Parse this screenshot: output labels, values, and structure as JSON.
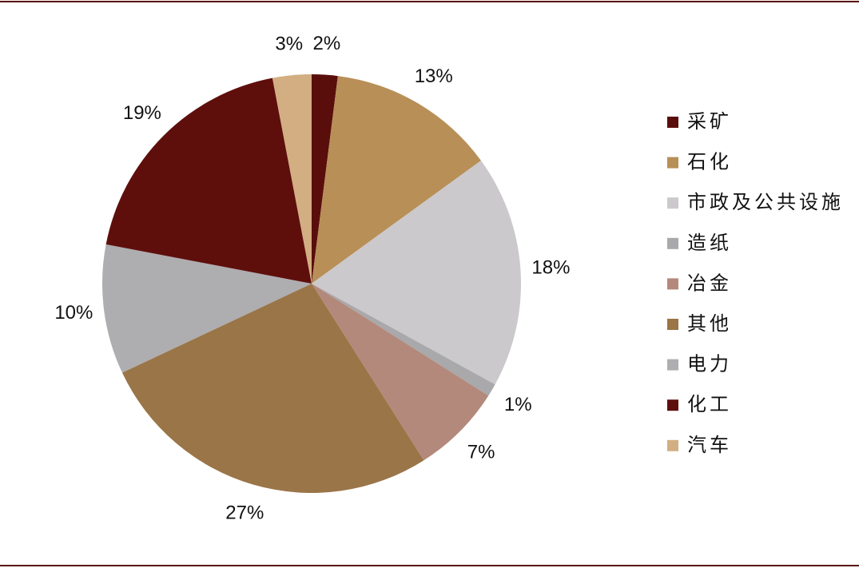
{
  "chart_data": {
    "type": "pie",
    "categories": [
      "采矿",
      "石化",
      "市政及公共设施",
      "造纸",
      "冶金",
      "其他",
      "电力",
      "化工",
      "汽车"
    ],
    "values": [
      2,
      13,
      18,
      1,
      7,
      27,
      10,
      19,
      3
    ],
    "value_labels": [
      "2%",
      "13%",
      "18%",
      "1%",
      "7%",
      "27%",
      "10%",
      "19%",
      "3%"
    ],
    "colors": [
      "#5a0e0c",
      "#b88f57",
      "#cbc9cb",
      "#a9a8aa",
      "#b3897b",
      "#9a7547",
      "#aeadb0",
      "#5e0f0c",
      "#d2ae82"
    ],
    "legend": "right"
  }
}
